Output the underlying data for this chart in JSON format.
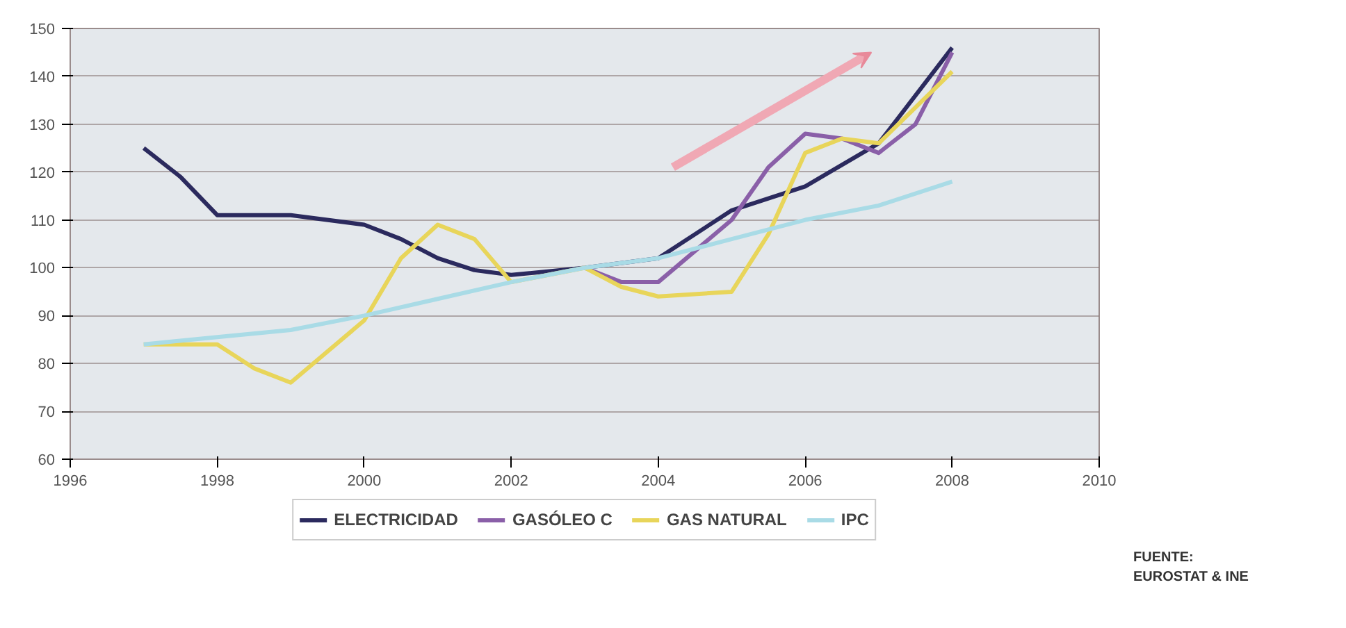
{
  "chart_data": {
    "type": "line",
    "series": [
      {
        "name": "ELECTRICIDAD",
        "color": "#2b2a5e",
        "x": [
          1997,
          1997.5,
          1998,
          1999,
          2000,
          2000.5,
          2001,
          2001.5,
          2002,
          2003,
          2004,
          2005,
          2006,
          2007,
          2008
        ],
        "values": [
          125,
          119,
          111,
          111,
          109,
          106,
          102,
          99.5,
          98.5,
          100,
          102,
          112,
          117,
          126,
          146
        ]
      },
      {
        "name": "GASÓLEO C",
        "color": "#8a5fa8",
        "x": [
          2003,
          2003.5,
          2004,
          2005,
          2005.5,
          2006,
          2006.5,
          2007,
          2007.5,
          2008
        ],
        "values": [
          100,
          97,
          97,
          110,
          121,
          128,
          127,
          124,
          130,
          145
        ]
      },
      {
        "name": "GAS NATURAL",
        "color": "#e8d55a",
        "x": [
          1997,
          1998,
          1998.5,
          1999,
          2000,
          2000.5,
          2001,
          2001.5,
          2002,
          2003,
          2003.5,
          2004,
          2005,
          2005.5,
          2006,
          2006.5,
          2007,
          2008
        ],
        "values": [
          84,
          84,
          79,
          76,
          89,
          102,
          109,
          106,
          97,
          100,
          96,
          94,
          95,
          107,
          124,
          127,
          126,
          141
        ]
      },
      {
        "name": "IPC",
        "color": "#a9dbe6",
        "x": [
          1997,
          1998,
          1999,
          2000,
          2001,
          2002,
          2003,
          2004,
          2005,
          2006,
          2007,
          2008
        ],
        "values": [
          84,
          85.5,
          87,
          90,
          93.5,
          97,
          100,
          102,
          106,
          110,
          113,
          118
        ]
      }
    ],
    "xlim": [
      1996,
      2010
    ],
    "xticks": [
      1996,
      1998,
      2000,
      2002,
      2004,
      2006,
      2008,
      2010
    ],
    "ylim": [
      60,
      150
    ],
    "yticks": [
      60,
      70,
      80,
      90,
      100,
      110,
      120,
      130,
      140,
      150
    ],
    "grid": "y",
    "legend": "bottom",
    "marker": "none",
    "line_style": "solid",
    "annotations": [
      "FUENTE:\nEUROSTAT & INE"
    ]
  }
}
